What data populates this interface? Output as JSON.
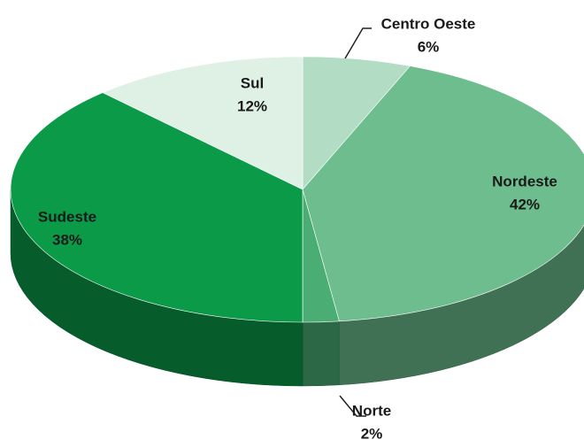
{
  "chart_data": {
    "type": "pie3d",
    "categories": [
      "Centro Oeste",
      "Nordeste",
      "Norte",
      "Sudeste",
      "Sul"
    ],
    "values": [
      6,
      42,
      2,
      38,
      12
    ],
    "value_labels": [
      "6%",
      "42%",
      "2%",
      "38%",
      "12%"
    ],
    "colors": [
      "#b3dcc4",
      "#6dbd8e",
      "#4aae74",
      "#0a9a48",
      "#dff0e5"
    ]
  }
}
